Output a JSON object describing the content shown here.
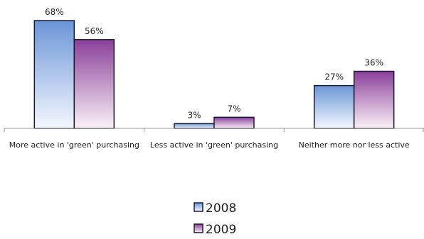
{
  "chart_data": {
    "type": "bar",
    "title": "",
    "xlabel": "",
    "ylabel": "",
    "ylim": [
      0,
      75
    ],
    "grid": false,
    "legend_position": "bottom",
    "categories": [
      "More active in 'green' purchasing",
      "Less active in 'green' purchasing",
      "Neither more nor less active"
    ],
    "series": [
      {
        "name": "2008",
        "values": [
          68,
          3,
          27
        ],
        "labels": [
          "68%",
          "3%",
          "27%"
        ],
        "color": "#4f81bd"
      },
      {
        "name": "2009",
        "values": [
          56,
          7,
          36
        ],
        "labels": [
          "56%",
          "7%",
          "36%"
        ],
        "color": "#7f3f8f"
      }
    ]
  }
}
